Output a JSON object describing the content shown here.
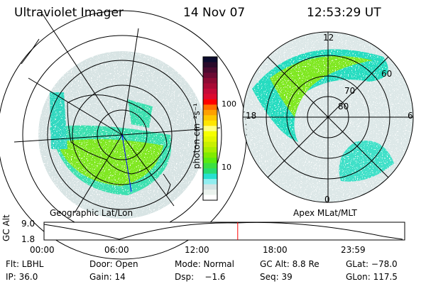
{
  "header": {
    "instrument": "Ultraviolet Imager",
    "date": "14 Nov 07",
    "time": "12:53:29 UT"
  },
  "left_map": {
    "label": "Geographic Lat/Lon"
  },
  "right_map": {
    "label": "Apex MLat/MLT",
    "mlt_labels": [
      "12",
      "18",
      "6",
      "0"
    ],
    "lat_labels": [
      "60",
      "70",
      "80"
    ]
  },
  "colorbar": {
    "label": "photon cm⁻²s⁻¹",
    "ticks": [
      "100",
      "10"
    ],
    "colors": [
      "#0b0b2e",
      "#2a0a2a",
      "#4a0a30",
      "#6b0a33",
      "#8c0a33",
      "#a80a35",
      "#c40a38",
      "#dc0a30",
      "#ff0000",
      "#ff7000",
      "#ffa000",
      "#ffc800",
      "#ffe600",
      "#ffff80",
      "#f5ff00",
      "#e2f700",
      "#c8f000",
      "#a8ee00",
      "#80ea00",
      "#5aea10",
      "#3ce040",
      "#28dc70",
      "#28e0d0",
      "#90eef0",
      "#d4e4e4",
      "#ebf3ee",
      "#ffffff"
    ]
  },
  "timeline": {
    "ylabel": "GC Alt",
    "yticks": [
      "9.0",
      "1.8"
    ],
    "xticks": [
      "00:00",
      "06:00",
      "12:00",
      "18:00",
      "23:59"
    ],
    "current_time_fraction": 0.537
  },
  "status": {
    "row1": [
      "Flt: LBHL",
      "Door: Open",
      "Mode: Normal",
      "GC Alt: 8.8 Re",
      "GLat: −78.0"
    ],
    "row2": [
      "IP: 36.0",
      "Gain: 14",
      "Dsp:    −1.6",
      "Seq: 39",
      "GLon: 117.5"
    ]
  }
}
